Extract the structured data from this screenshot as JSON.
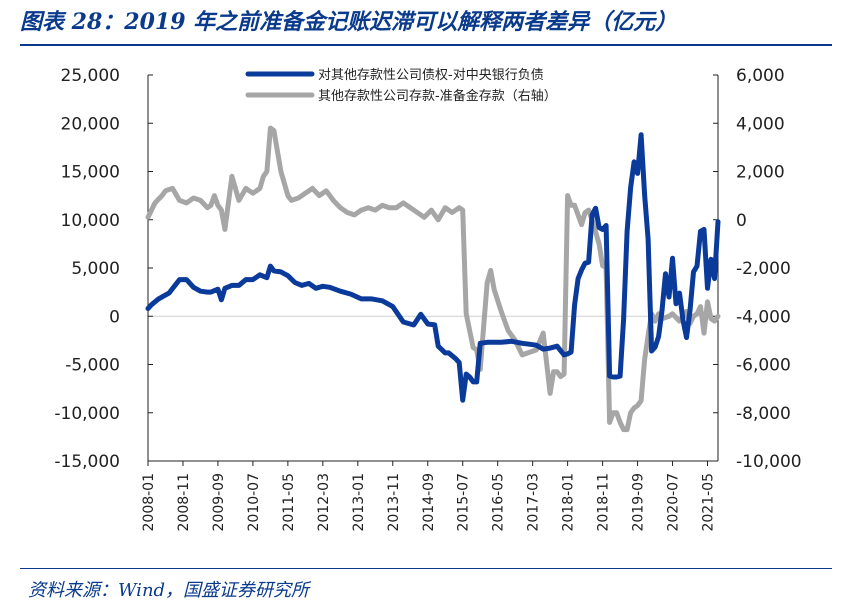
{
  "title": "图表 28：2019 年之前准备金记账迟滞可以解释两者差异（亿元）",
  "source": "资料来源：Wind，国盛证券研究所",
  "chart_data": {
    "type": "line",
    "title": "图表 28：2019 年之前准备金记账迟滞可以解释两者差异（亿元）",
    "left_axis": {
      "ylim": [
        -15000,
        25000
      ],
      "ticks": [
        -15000,
        -10000,
        -5000,
        0,
        5000,
        10000,
        15000,
        20000,
        25000
      ],
      "tick_labels": [
        "-15,000",
        "-10,000",
        "-5,000",
        "0",
        "5,000",
        "10,000",
        "15,000",
        "20,000",
        "25,000"
      ]
    },
    "right_axis": {
      "ylim": [
        -10000,
        6000
      ],
      "ticks": [
        -10000,
        -8000,
        -6000,
        -4000,
        -2000,
        0,
        2000,
        4000,
        6000
      ],
      "tick_labels": [
        "-10,000",
        "-8,000",
        "-6,000",
        "-4,000",
        "-2,000",
        "0",
        "2,000",
        "4,000",
        "6,000"
      ]
    },
    "x_axis": {
      "start": "2008-01",
      "end": "2021-08",
      "tick_labels": [
        "2008-01",
        "2008-11",
        "2009-09",
        "2010-07",
        "2011-05",
        "2012-03",
        "2013-01",
        "2013-11",
        "2014-09",
        "2015-07",
        "2016-05",
        "2017-03",
        "2018-01",
        "2018-11",
        "2019-09",
        "2020-07",
        "2021-05"
      ]
    },
    "legend": {
      "placement": "top-center"
    },
    "colors": {
      "series1": "#0a3a9a",
      "series2": "#a6a6a6",
      "text": "#222222",
      "accent": "#0a3a8c"
    },
    "series": [
      {
        "name": "对其他存款性公司债权-对中央银行负债",
        "axis": "left",
        "x": [
          "2008-01",
          "2008-02",
          "2008-04",
          "2008-07",
          "2008-10",
          "2008-12",
          "2009-02",
          "2009-04",
          "2009-06",
          "2009-07",
          "2009-09",
          "2009-10",
          "2009-11",
          "2010-01",
          "2010-03",
          "2010-05",
          "2010-07",
          "2010-09",
          "2010-11",
          "2010-12",
          "2011-01",
          "2011-03",
          "2011-05",
          "2011-07",
          "2011-09",
          "2011-11",
          "2012-01",
          "2012-03",
          "2012-05",
          "2012-08",
          "2012-11",
          "2013-02",
          "2013-05",
          "2013-08",
          "2013-11",
          "2014-02",
          "2014-04",
          "2014-05",
          "2014-07",
          "2014-09",
          "2014-11",
          "2014-12",
          "2015-02",
          "2015-03",
          "2015-05",
          "2015-06",
          "2015-07",
          "2015-08",
          "2015-09",
          "2015-10",
          "2015-11",
          "2015-12",
          "2016-02",
          "2016-04",
          "2016-06",
          "2016-09",
          "2016-12",
          "2017-02",
          "2017-04",
          "2017-06",
          "2017-08",
          "2017-10",
          "2017-12",
          "2018-01",
          "2018-02",
          "2018-03",
          "2018-04",
          "2018-05",
          "2018-06",
          "2018-07",
          "2018-08",
          "2018-09",
          "2018-10",
          "2018-11",
          "2018-12",
          "2019-01",
          "2019-02",
          "2019-03",
          "2019-04",
          "2019-05",
          "2019-06",
          "2019-07",
          "2019-08",
          "2019-09",
          "2019-10",
          "2019-11",
          "2019-12",
          "2020-01",
          "2020-02",
          "2020-03",
          "2020-04",
          "2020-05",
          "2020-06",
          "2020-07",
          "2020-08",
          "2020-09",
          "2020-10",
          "2020-11",
          "2020-12",
          "2021-01",
          "2021-02",
          "2021-03",
          "2021-04",
          "2021-05",
          "2021-06",
          "2021-07",
          "2021-08"
        ],
        "y": [
          800,
          1200,
          1800,
          2400,
          3800,
          3800,
          3000,
          2600,
          2500,
          2500,
          2800,
          1700,
          2900,
          3200,
          3200,
          3800,
          3800,
          4300,
          4000,
          5200,
          4700,
          4600,
          4200,
          3500,
          3200,
          3400,
          2900,
          3100,
          3000,
          2600,
          2300,
          1800,
          1800,
          1600,
          1000,
          -600,
          -800,
          -900,
          200,
          -800,
          -900,
          -3100,
          -3800,
          -3800,
          -4400,
          -4800,
          -8700,
          -6000,
          -6300,
          -6800,
          -6800,
          -2800,
          -2700,
          -2700,
          -2700,
          -2600,
          -2800,
          -2900,
          -3000,
          -3400,
          -3300,
          -3100,
          -4000,
          -3900,
          -3700,
          1200,
          3900,
          4800,
          5500,
          5600,
          10500,
          11200,
          9200,
          9000,
          9400,
          -6200,
          -6300,
          -6300,
          -6200,
          -300,
          8800,
          13300,
          16000,
          14800,
          18800,
          12600,
          8000,
          -3600,
          -3200,
          -2100,
          600,
          4400,
          2000,
          6000,
          1300,
          2400,
          -400,
          -2200,
          600,
          4600,
          5200,
          8800,
          9000,
          2900,
          5900,
          3900,
          9800
        ]
      },
      {
        "name": "其他存款性公司存款-准备金存款（右轴）",
        "axis": "right",
        "x": [
          "2008-01",
          "2008-03",
          "2008-05",
          "2008-06",
          "2008-08",
          "2008-10",
          "2008-12",
          "2009-02",
          "2009-04",
          "2009-06",
          "2009-07",
          "2009-08",
          "2009-09",
          "2009-10",
          "2009-11",
          "2010-01",
          "2010-03",
          "2010-05",
          "2010-07",
          "2010-09",
          "2010-10",
          "2010-11",
          "2010-12",
          "2011-01",
          "2011-03",
          "2011-05",
          "2011-06",
          "2011-08",
          "2011-10",
          "2011-12",
          "2012-02",
          "2012-04",
          "2012-06",
          "2012-08",
          "2012-10",
          "2012-12",
          "2013-02",
          "2013-04",
          "2013-06",
          "2013-08",
          "2013-10",
          "2013-12",
          "2014-02",
          "2014-04",
          "2014-06",
          "2014-08",
          "2014-10",
          "2014-12",
          "2015-02",
          "2015-04",
          "2015-06",
          "2015-07",
          "2015-08",
          "2015-09",
          "2015-10",
          "2015-11",
          "2015-12",
          "2016-02",
          "2016-03",
          "2016-04",
          "2016-06",
          "2016-08",
          "2016-10",
          "2016-12",
          "2017-02",
          "2017-04",
          "2017-06",
          "2017-08",
          "2017-09",
          "2017-10",
          "2017-11",
          "2017-12",
          "2018-01",
          "2018-02",
          "2018-03",
          "2018-05",
          "2018-06",
          "2018-07",
          "2018-08",
          "2018-09",
          "2018-10",
          "2018-11",
          "2018-12",
          "2019-01",
          "2019-02",
          "2019-03",
          "2019-04",
          "2019-05",
          "2019-06",
          "2019-07",
          "2019-08",
          "2019-09",
          "2019-10",
          "2019-11",
          "2019-12",
          "2020-01",
          "2020-02",
          "2020-03",
          "2020-04",
          "2020-06",
          "2020-07",
          "2020-09",
          "2020-11",
          "2020-12",
          "2021-01",
          "2021-02",
          "2021-03",
          "2021-04",
          "2021-05",
          "2021-06",
          "2021-07",
          "2021-08"
        ],
        "y": [
          100,
          700,
          1000,
          1200,
          1300,
          800,
          700,
          900,
          800,
          500,
          600,
          1000,
          600,
          400,
          -400,
          1800,
          800,
          1300,
          1100,
          1300,
          1800,
          2000,
          3800,
          3700,
          2000,
          1000,
          800,
          900,
          1100,
          1300,
          1000,
          1200,
          800,
          500,
          300,
          200,
          400,
          500,
          400,
          600,
          500,
          500,
          700,
          500,
          300,
          100,
          400,
          0,
          500,
          300,
          500,
          400,
          -3900,
          -4600,
          -5300,
          -5400,
          -6200,
          -2600,
          -2100,
          -2900,
          -3800,
          -4600,
          -5000,
          -5600,
          -5500,
          -5400,
          -4700,
          -7200,
          -6300,
          -6300,
          -6500,
          -6400,
          1000,
          600,
          600,
          -200,
          300,
          400,
          0,
          -500,
          -1000,
          -1900,
          -2000,
          -8400,
          -8000,
          -8000,
          -8400,
          -8700,
          -8700,
          -8000,
          -7800,
          -7700,
          -7500,
          -5800,
          -4800,
          -3900,
          -4200,
          -3900,
          -4100,
          -4000,
          -3900,
          -4200,
          -3800,
          -4300,
          -4000,
          -3900,
          -3600,
          -4700,
          -3400,
          -4100,
          -4200,
          -4000
        ]
      }
    ]
  }
}
